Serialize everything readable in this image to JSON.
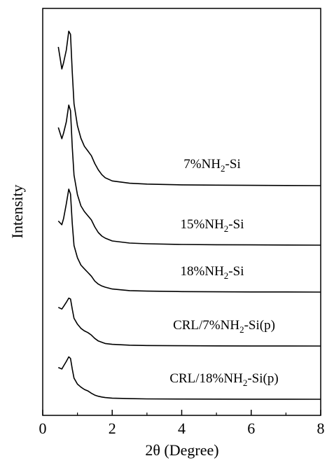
{
  "chart_data": {
    "type": "line",
    "xlabel": "2θ (Degree)",
    "ylabel": "Intensity",
    "xlim": [
      0,
      8
    ],
    "x_ticks": [
      "0",
      "2",
      "4",
      "6",
      "8"
    ],
    "y_ticks_shown": false,
    "grid": false,
    "legend": "inline labels",
    "x": [
      0.45,
      0.55,
      0.6,
      0.68,
      0.75,
      0.8,
      0.85,
      0.9,
      1.0,
      1.1,
      1.2,
      1.3,
      1.4,
      1.5,
      1.6,
      1.7,
      1.8,
      2.0,
      2.5,
      3.0,
      4.0,
      5.0,
      6.0,
      7.0,
      8.0
    ],
    "series": [
      {
        "name": "7%NH2-Si",
        "label_main": "7%NH",
        "label_sub": "2",
        "label_tail": "-Si",
        "values": [
          0.88,
          0.74,
          0.78,
          0.86,
          0.98,
          0.96,
          0.72,
          0.52,
          0.38,
          0.3,
          0.25,
          0.22,
          0.19,
          0.14,
          0.1,
          0.07,
          0.05,
          0.03,
          0.015,
          0.01,
          0.005,
          0.003,
          0.002,
          0.001,
          0.0
        ]
      },
      {
        "name": "15%NH2-Si",
        "label_main": "15%NH",
        "label_sub": "2",
        "label_tail": "-Si",
        "values": [
          0.84,
          0.76,
          0.8,
          0.88,
          1.0,
          0.96,
          0.7,
          0.5,
          0.36,
          0.28,
          0.24,
          0.21,
          0.18,
          0.13,
          0.09,
          0.065,
          0.05,
          0.03,
          0.015,
          0.01,
          0.005,
          0.003,
          0.002,
          0.001,
          0.0
        ]
      },
      {
        "name": "18%NH2-Si",
        "label_main": "18%NH",
        "label_sub": "2",
        "label_tail": "-Si",
        "values": [
          0.58,
          0.55,
          0.6,
          0.72,
          0.84,
          0.8,
          0.56,
          0.38,
          0.28,
          0.22,
          0.19,
          0.16,
          0.13,
          0.09,
          0.065,
          0.05,
          0.04,
          0.025,
          0.012,
          0.008,
          0.004,
          0.002,
          0.001,
          0.001,
          0.0
        ]
      },
      {
        "name": "CRL/7%NH2-Si(p)",
        "label_main": "CRL/7%NH",
        "label_sub": "2",
        "label_tail": "-Si(p)",
        "values": [
          0.46,
          0.44,
          0.47,
          0.52,
          0.57,
          0.56,
          0.44,
          0.33,
          0.26,
          0.21,
          0.18,
          0.16,
          0.13,
          0.09,
          0.06,
          0.045,
          0.03,
          0.02,
          0.01,
          0.006,
          0.003,
          0.002,
          0.001,
          0.001,
          0.0
        ]
      },
      {
        "name": "CRL/18%NH2-Si(p)",
        "label_main": "CRL/18%NH",
        "label_sub": "2",
        "label_tail": "-Si(p)",
        "values": [
          0.42,
          0.4,
          0.44,
          0.5,
          0.56,
          0.54,
          0.4,
          0.28,
          0.2,
          0.16,
          0.13,
          0.11,
          0.08,
          0.055,
          0.04,
          0.03,
          0.022,
          0.015,
          0.008,
          0.005,
          0.003,
          0.002,
          0.001,
          0.001,
          0.0
        ]
      }
    ]
  }
}
